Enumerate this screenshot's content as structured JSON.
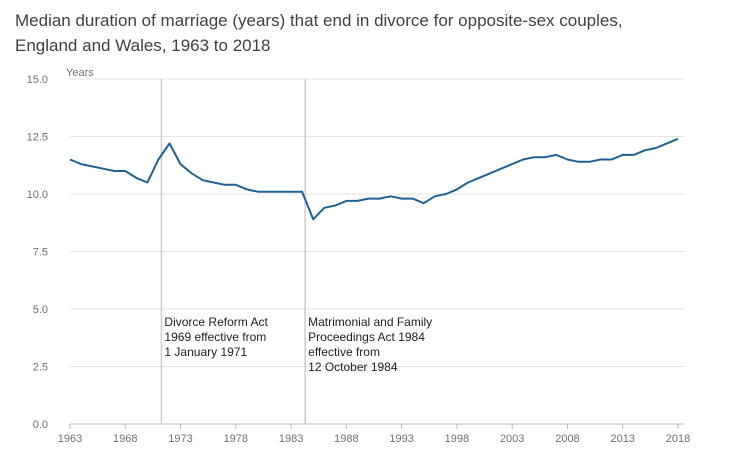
{
  "chart_data": {
    "type": "line",
    "title": "Median duration of marriage (years) that end in divorce for opposite-sex couples, England and Wales, 1963 to 2018",
    "ylabel": "Years",
    "xlabel": "",
    "ylim": [
      0,
      15
    ],
    "yticks": [
      "0.0",
      "2.5",
      "5.0",
      "7.5",
      "10.0",
      "12.5",
      "15.0"
    ],
    "yticks_values": [
      0,
      2.5,
      5,
      7.5,
      10,
      12.5,
      15
    ],
    "xlim": [
      1963,
      2018
    ],
    "xticks": [
      "1963",
      "1968",
      "1973",
      "1978",
      "1983",
      "1988",
      "1993",
      "1998",
      "2003",
      "2008",
      "2013",
      "2018"
    ],
    "xticks_values": [
      1963,
      1968,
      1973,
      1978,
      1983,
      1988,
      1993,
      1998,
      2003,
      2008,
      2013,
      2018
    ],
    "grid": "horizontal",
    "line_color": "#206095",
    "series": [
      {
        "x": [
          1963,
          1964,
          1965,
          1966,
          1967,
          1968,
          1969,
          1970,
          1971,
          1972,
          1973,
          1974,
          1975,
          1976,
          1977,
          1978,
          1979,
          1980,
          1981,
          1982,
          1983,
          1984,
          1985,
          1986,
          1987,
          1988,
          1989,
          1990,
          1991,
          1992,
          1993,
          1994,
          1995,
          1996,
          1997,
          1998,
          1999,
          2000,
          2001,
          2002,
          2003,
          2004,
          2005,
          2006,
          2007,
          2008,
          2009,
          2010,
          2011,
          2012,
          2013,
          2014,
          2015,
          2016,
          2017,
          2018
        ],
        "values": [
          11.5,
          11.3,
          11.2,
          11.1,
          11.0,
          11.0,
          10.7,
          10.5,
          11.5,
          12.2,
          11.3,
          10.9,
          10.6,
          10.5,
          10.4,
          10.4,
          10.2,
          10.1,
          10.1,
          10.1,
          10.1,
          10.1,
          8.9,
          9.4,
          9.5,
          9.7,
          9.7,
          9.8,
          9.8,
          9.9,
          9.8,
          9.8,
          9.6,
          9.9,
          10.0,
          10.2,
          10.5,
          10.7,
          10.9,
          11.1,
          11.3,
          11.5,
          11.6,
          11.6,
          11.7,
          11.5,
          11.4,
          11.4,
          11.5,
          11.5,
          11.7,
          11.7,
          11.9,
          12.0,
          12.2,
          12.4
        ]
      }
    ],
    "annotations": [
      {
        "x": 1971,
        "lines": [
          "Divorce Reform Act",
          "1969 effective from",
          "1 January 1971"
        ]
      },
      {
        "x": 1984,
        "lines": [
          "Matrimonial and Family",
          "Proceedings Act 1984",
          "effective from",
          "12 October 1984"
        ]
      }
    ],
    "annotation_line_color": "#cccccc"
  }
}
